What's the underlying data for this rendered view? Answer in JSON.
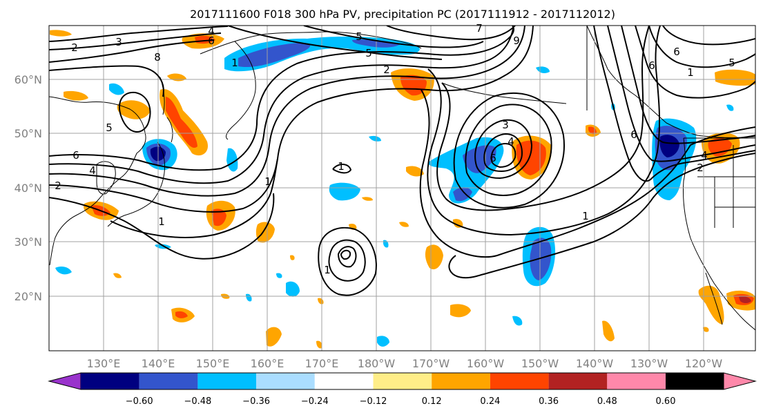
{
  "title": "2017111600 F018 300 hPa PV, precipitation PC (2017111912 - 2017112012)",
  "longitude_labels": [
    "130°E",
    "140°E",
    "150°E",
    "160°E",
    "170°E",
    "180°W",
    "170°W",
    "160°W",
    "150°W",
    "140°W",
    "130°W",
    "120°W"
  ],
  "latitude_labels": [
    "60°N",
    "50°N",
    "40°N",
    "30°N",
    "20°N"
  ],
  "colorbar": {
    "colors": [
      "#9933cc",
      "#000080",
      "#3355cc",
      "#00bfff",
      "#aaddff",
      "#ffffff",
      "#ffee88",
      "#ffa500",
      "#ff4400",
      "#b22222",
      "#ff88aa"
    ],
    "tick_labels": [
      "−0.60",
      "−0.48",
      "−0.36",
      "−0.24",
      "−0.12",
      "0.12",
      "0.24",
      "0.36",
      "0.48",
      "0.60"
    ]
  },
  "contour_labels": [
    {
      "text": "2"
    },
    {
      "text": "3"
    },
    {
      "text": "4"
    },
    {
      "text": "5"
    },
    {
      "text": "6"
    },
    {
      "text": "8"
    },
    {
      "text": "5"
    },
    {
      "text": "6"
    },
    {
      "text": "4"
    },
    {
      "text": "1"
    },
    {
      "text": "1"
    },
    {
      "text": "2"
    },
    {
      "text": "1"
    },
    {
      "text": "1"
    },
    {
      "text": "3"
    },
    {
      "text": "4"
    },
    {
      "text": "6"
    },
    {
      "text": "1"
    },
    {
      "text": "5"
    },
    {
      "text": "2"
    },
    {
      "text": "1"
    },
    {
      "text": "7"
    },
    {
      "text": "9"
    },
    {
      "text": "6"
    },
    {
      "text": "6"
    },
    {
      "text": "1"
    },
    {
      "text": "5"
    },
    {
      "text": "4"
    },
    {
      "text": "2"
    },
    {
      "text": "6"
    }
  ]
}
